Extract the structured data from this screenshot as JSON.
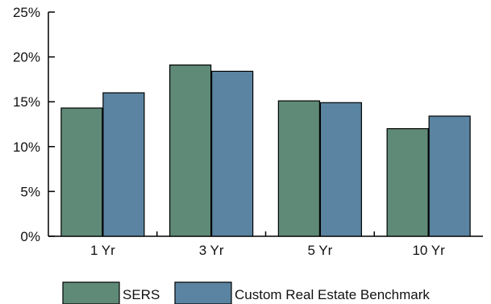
{
  "chart_data": {
    "type": "bar",
    "categories": [
      "1 Yr",
      "3 Yr",
      "5 Yr",
      "10 Yr"
    ],
    "series": [
      {
        "name": "SERS",
        "values": [
          14.3,
          19.1,
          15.1,
          12.0
        ],
        "color": "#5f8a78"
      },
      {
        "name": "Custom Real Estate Benchmark",
        "values": [
          16.0,
          18.4,
          14.9,
          13.4
        ],
        "color": "#5a84a1"
      }
    ],
    "ylim": [
      0,
      25
    ],
    "y_ticks": [
      "0%",
      "5%",
      "10%",
      "15%",
      "20%",
      "25%"
    ],
    "grid": false,
    "legend_position": "bottom-center"
  }
}
